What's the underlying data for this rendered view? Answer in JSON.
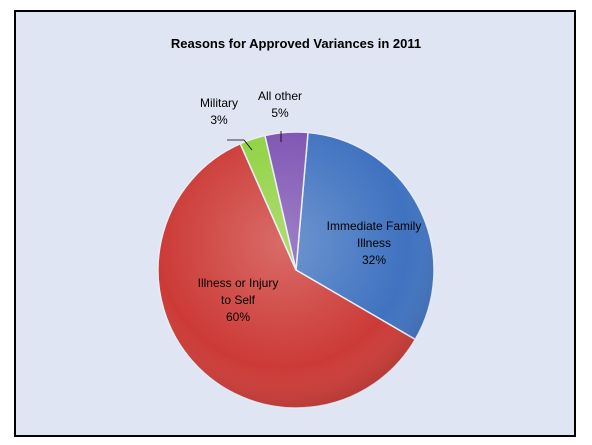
{
  "chart_data": {
    "type": "pie",
    "title": "Reasons for Approved Variances in 2011",
    "slices": [
      {
        "label": "Immediate Family Illness",
        "label_lines": [
          "Immediate Family",
          "Illness"
        ],
        "value": 32,
        "value_label": "32%",
        "color": "#3f72c0"
      },
      {
        "label": "Illness or Injury to Self",
        "label_lines": [
          "Illness or Injury",
          "to Self"
        ],
        "value": 60,
        "value_label": "60%",
        "color": "#cc3a36"
      },
      {
        "label": "Military",
        "label_lines": [
          "Military"
        ],
        "value": 3,
        "value_label": "3%",
        "color": "#8fd13f"
      },
      {
        "label": "All other",
        "label_lines": [
          "All other"
        ],
        "value": 5,
        "value_label": "5%",
        "color": "#7d52b2"
      }
    ],
    "legend": "none",
    "data_labels": "category and percentage"
  }
}
